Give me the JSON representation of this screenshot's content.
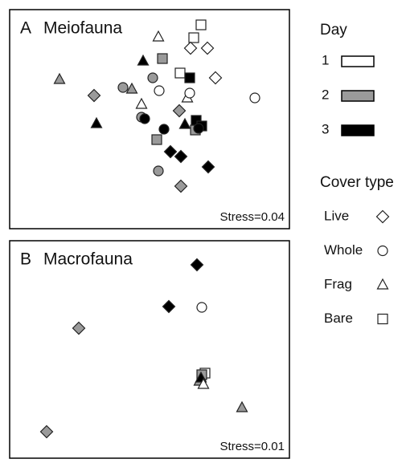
{
  "chart_data": [
    {
      "type": "scatter",
      "label": "A",
      "title": "Meiofauna",
      "stress": "Stress=0.04",
      "xlim": [
        0,
        348
      ],
      "ylim": [
        0,
        273
      ],
      "series": [
        {
          "fill": "#ffffff",
          "shape": "square",
          "x": [
            238,
            229,
            212
          ],
          "y": [
            254,
            238,
            194
          ]
        },
        {
          "fill": "#ffffff",
          "shape": "diamond",
          "x": [
            225,
            246,
            256
          ],
          "y": [
            225,
            225,
            188
          ]
        },
        {
          "fill": "#ffffff",
          "shape": "triangle",
          "x": [
            185,
            164,
            221
          ],
          "y": [
            239,
            155,
            163
          ]
        },
        {
          "fill": "#ffffff",
          "shape": "circle",
          "x": [
            186,
            224,
            305
          ],
          "y": [
            172,
            169,
            163
          ]
        },
        {
          "fill": "#9a9a9a",
          "shape": "square",
          "x": [
            190,
            183,
            231
          ],
          "y": [
            212,
            111,
            123
          ]
        },
        {
          "fill": "#9a9a9a",
          "shape": "triangle",
          "x": [
            62,
            152
          ],
          "y": [
            186,
            174
          ]
        },
        {
          "fill": "#9a9a9a",
          "shape": "diamond",
          "x": [
            105,
            211,
            213
          ],
          "y": [
            166,
            147,
            53
          ]
        },
        {
          "fill": "#9a9a9a",
          "shape": "circle",
          "x": [
            178,
            141,
            164,
            185
          ],
          "y": [
            188,
            176,
            139,
            72
          ]
        },
        {
          "fill": "#000000",
          "shape": "square",
          "x": [
            224,
            232,
            239
          ],
          "y": [
            188,
            135,
            128
          ]
        },
        {
          "fill": "#000000",
          "shape": "triangle",
          "x": [
            166,
            108,
            218
          ],
          "y": [
            209,
            131,
            130
          ]
        },
        {
          "fill": "#000000",
          "shape": "diamond",
          "x": [
            200,
            213,
            247
          ],
          "y": [
            96,
            90,
            77
          ]
        },
        {
          "fill": "#000000",
          "shape": "circle",
          "x": [
            168,
            192,
            235
          ],
          "y": [
            137,
            124,
            125
          ]
        }
      ]
    },
    {
      "type": "scatter",
      "label": "B",
      "title": "Macrofauna",
      "stress": "Stress=0.01",
      "xlim": [
        0,
        348
      ],
      "ylim": [
        0,
        271
      ],
      "series": [
        {
          "fill": "#000000",
          "shape": "diamond",
          "x": [
            233,
            198
          ],
          "y": [
            241,
            189
          ]
        },
        {
          "fill": "#ffffff",
          "shape": "circle",
          "x": [
            239
          ],
          "y": [
            188
          ]
        },
        {
          "fill": "#9a9a9a",
          "shape": "diamond",
          "x": [
            86,
            46
          ],
          "y": [
            162,
            33
          ]
        },
        {
          "fill": "#9a9a9a",
          "shape": "triangle",
          "x": [
            289,
            236
          ],
          "y": [
            63,
            96
          ]
        },
        {
          "fill": "#ffffff",
          "shape": "square",
          "x": [
            243
          ],
          "y": [
            106
          ]
        },
        {
          "fill": "#9a9a9a",
          "shape": "square",
          "x": [
            239
          ],
          "y": [
            104
          ]
        },
        {
          "fill": "#000000",
          "shape": "triangle",
          "x": [
            238
          ],
          "y": [
            100
          ]
        },
        {
          "fill": "#ffffff",
          "shape": "triangle",
          "x": [
            241
          ],
          "y": [
            92
          ]
        }
      ]
    }
  ],
  "legend": {
    "day_title": "Day",
    "days": [
      {
        "label": "1",
        "fill": "#ffffff"
      },
      {
        "label": "2",
        "fill": "#9a9a9a"
      },
      {
        "label": "3",
        "fill": "#000000"
      }
    ],
    "cover_title": "Cover type",
    "covers": [
      {
        "label": "Live",
        "shape": "diamond"
      },
      {
        "label": "Whole",
        "shape": "circle"
      },
      {
        "label": "Frag",
        "shape": "triangle"
      },
      {
        "label": "Bare",
        "shape": "square"
      }
    ]
  }
}
